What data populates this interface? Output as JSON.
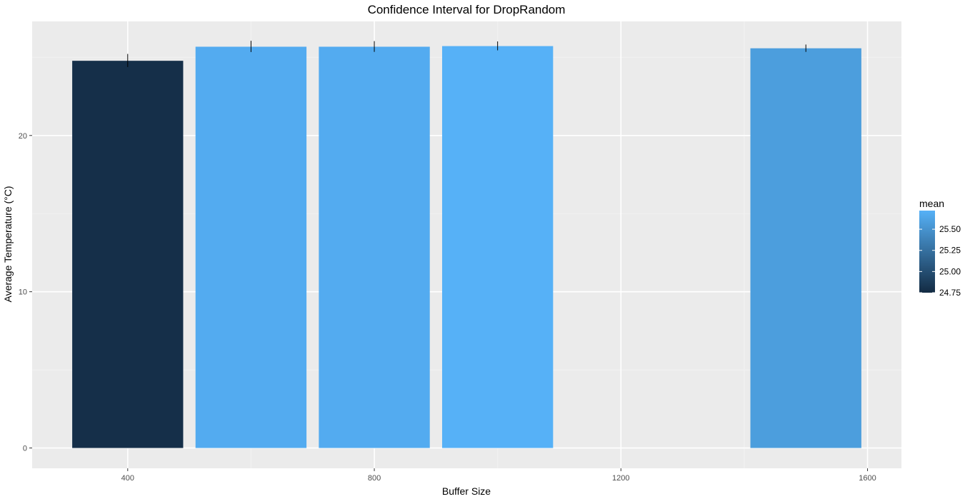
{
  "chart_data": {
    "type": "bar",
    "title": "Confidence Interval for DropRandom",
    "xlabel": "Buffer Size",
    "ylabel": "Average Temperature (°C)",
    "xlim": [
      245,
      1655
    ],
    "ylim": [
      -1.3,
      27.3
    ],
    "x_ticks": [
      400,
      800,
      1200,
      1600
    ],
    "x_tick_labels": [
      "400",
      "800",
      "1200",
      "1600"
    ],
    "y_ticks": [
      0,
      10,
      20
    ],
    "y_tick_labels": [
      "0",
      "10",
      "20"
    ],
    "bar_width": 180,
    "bars": [
      {
        "x": 400,
        "mean": 24.78,
        "lower": 24.38,
        "upper": 25.22
      },
      {
        "x": 600,
        "mean": 25.68,
        "lower": 25.34,
        "upper": 26.06
      },
      {
        "x": 800,
        "mean": 25.68,
        "lower": 25.35,
        "upper": 26.04
      },
      {
        "x": 1000,
        "mean": 25.72,
        "lower": 25.45,
        "upper": 26.02
      },
      {
        "x": 1500,
        "mean": 25.58,
        "lower": 25.35,
        "upper": 25.82
      }
    ],
    "grid": true,
    "legend": {
      "title": "mean",
      "position": "right",
      "type": "colorbar",
      "range": [
        24.75,
        25.72
      ],
      "low_color": "#132B43",
      "high_color": "#56B1F7",
      "breaks": [
        24.75,
        25.0,
        25.25,
        25.5
      ],
      "break_labels": [
        "24.75",
        "25.00",
        "25.25",
        "25.50"
      ]
    },
    "colors": {
      "panel_background": "#EBEBEB",
      "grid_major": "#FFFFFF",
      "grid_minor": "#F2F2F2",
      "error_bar": "#000000"
    }
  }
}
